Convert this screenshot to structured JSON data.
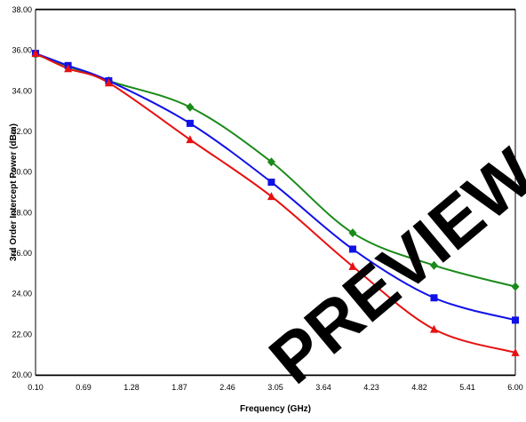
{
  "chart_data": {
    "type": "line",
    "title": "",
    "xlabel": "Frequency (GHz)",
    "ylabel": "3rd Order Intercept Power (dBm)",
    "xlim": [
      0.1,
      6.0
    ],
    "ylim": [
      20.0,
      38.0
    ],
    "x_ticks": [
      "0.10",
      "0.69",
      "1.28",
      "1.87",
      "2.46",
      "3.05",
      "3.64",
      "4.23",
      "4.82",
      "5.41",
      "6.00"
    ],
    "y_ticks": [
      "20.00",
      "22.00",
      "24.00",
      "26.00",
      "28.00",
      "30.00",
      "32.00",
      "34.00",
      "36.00",
      "38.00"
    ],
    "grid": true,
    "legend": "none",
    "series": [
      {
        "color": "#1a8a1a",
        "marker": "diamond",
        "points": [
          [
            0.1,
            35.8
          ],
          [
            1.0,
            34.5
          ],
          [
            2.0,
            33.2
          ],
          [
            3.0,
            30.5
          ],
          [
            4.0,
            27.0
          ],
          [
            5.0,
            25.4
          ],
          [
            6.0,
            24.35
          ]
        ]
      },
      {
        "color": "#1010e8",
        "marker": "square",
        "points": [
          [
            0.1,
            35.85
          ],
          [
            0.5,
            35.25
          ],
          [
            1.0,
            34.5
          ],
          [
            2.0,
            32.4
          ],
          [
            3.0,
            29.5
          ],
          [
            4.0,
            26.2
          ],
          [
            5.0,
            23.8
          ],
          [
            6.0,
            22.7
          ]
        ]
      },
      {
        "color": "#e81010",
        "marker": "triangle",
        "points": [
          [
            0.1,
            35.85
          ],
          [
            0.5,
            35.1
          ],
          [
            1.0,
            34.4
          ],
          [
            2.0,
            31.6
          ],
          [
            3.0,
            28.8
          ],
          [
            4.0,
            25.35
          ],
          [
            5.0,
            22.25
          ],
          [
            6.0,
            21.1
          ]
        ]
      }
    ]
  },
  "watermark": {
    "text": "PREVIEW"
  }
}
